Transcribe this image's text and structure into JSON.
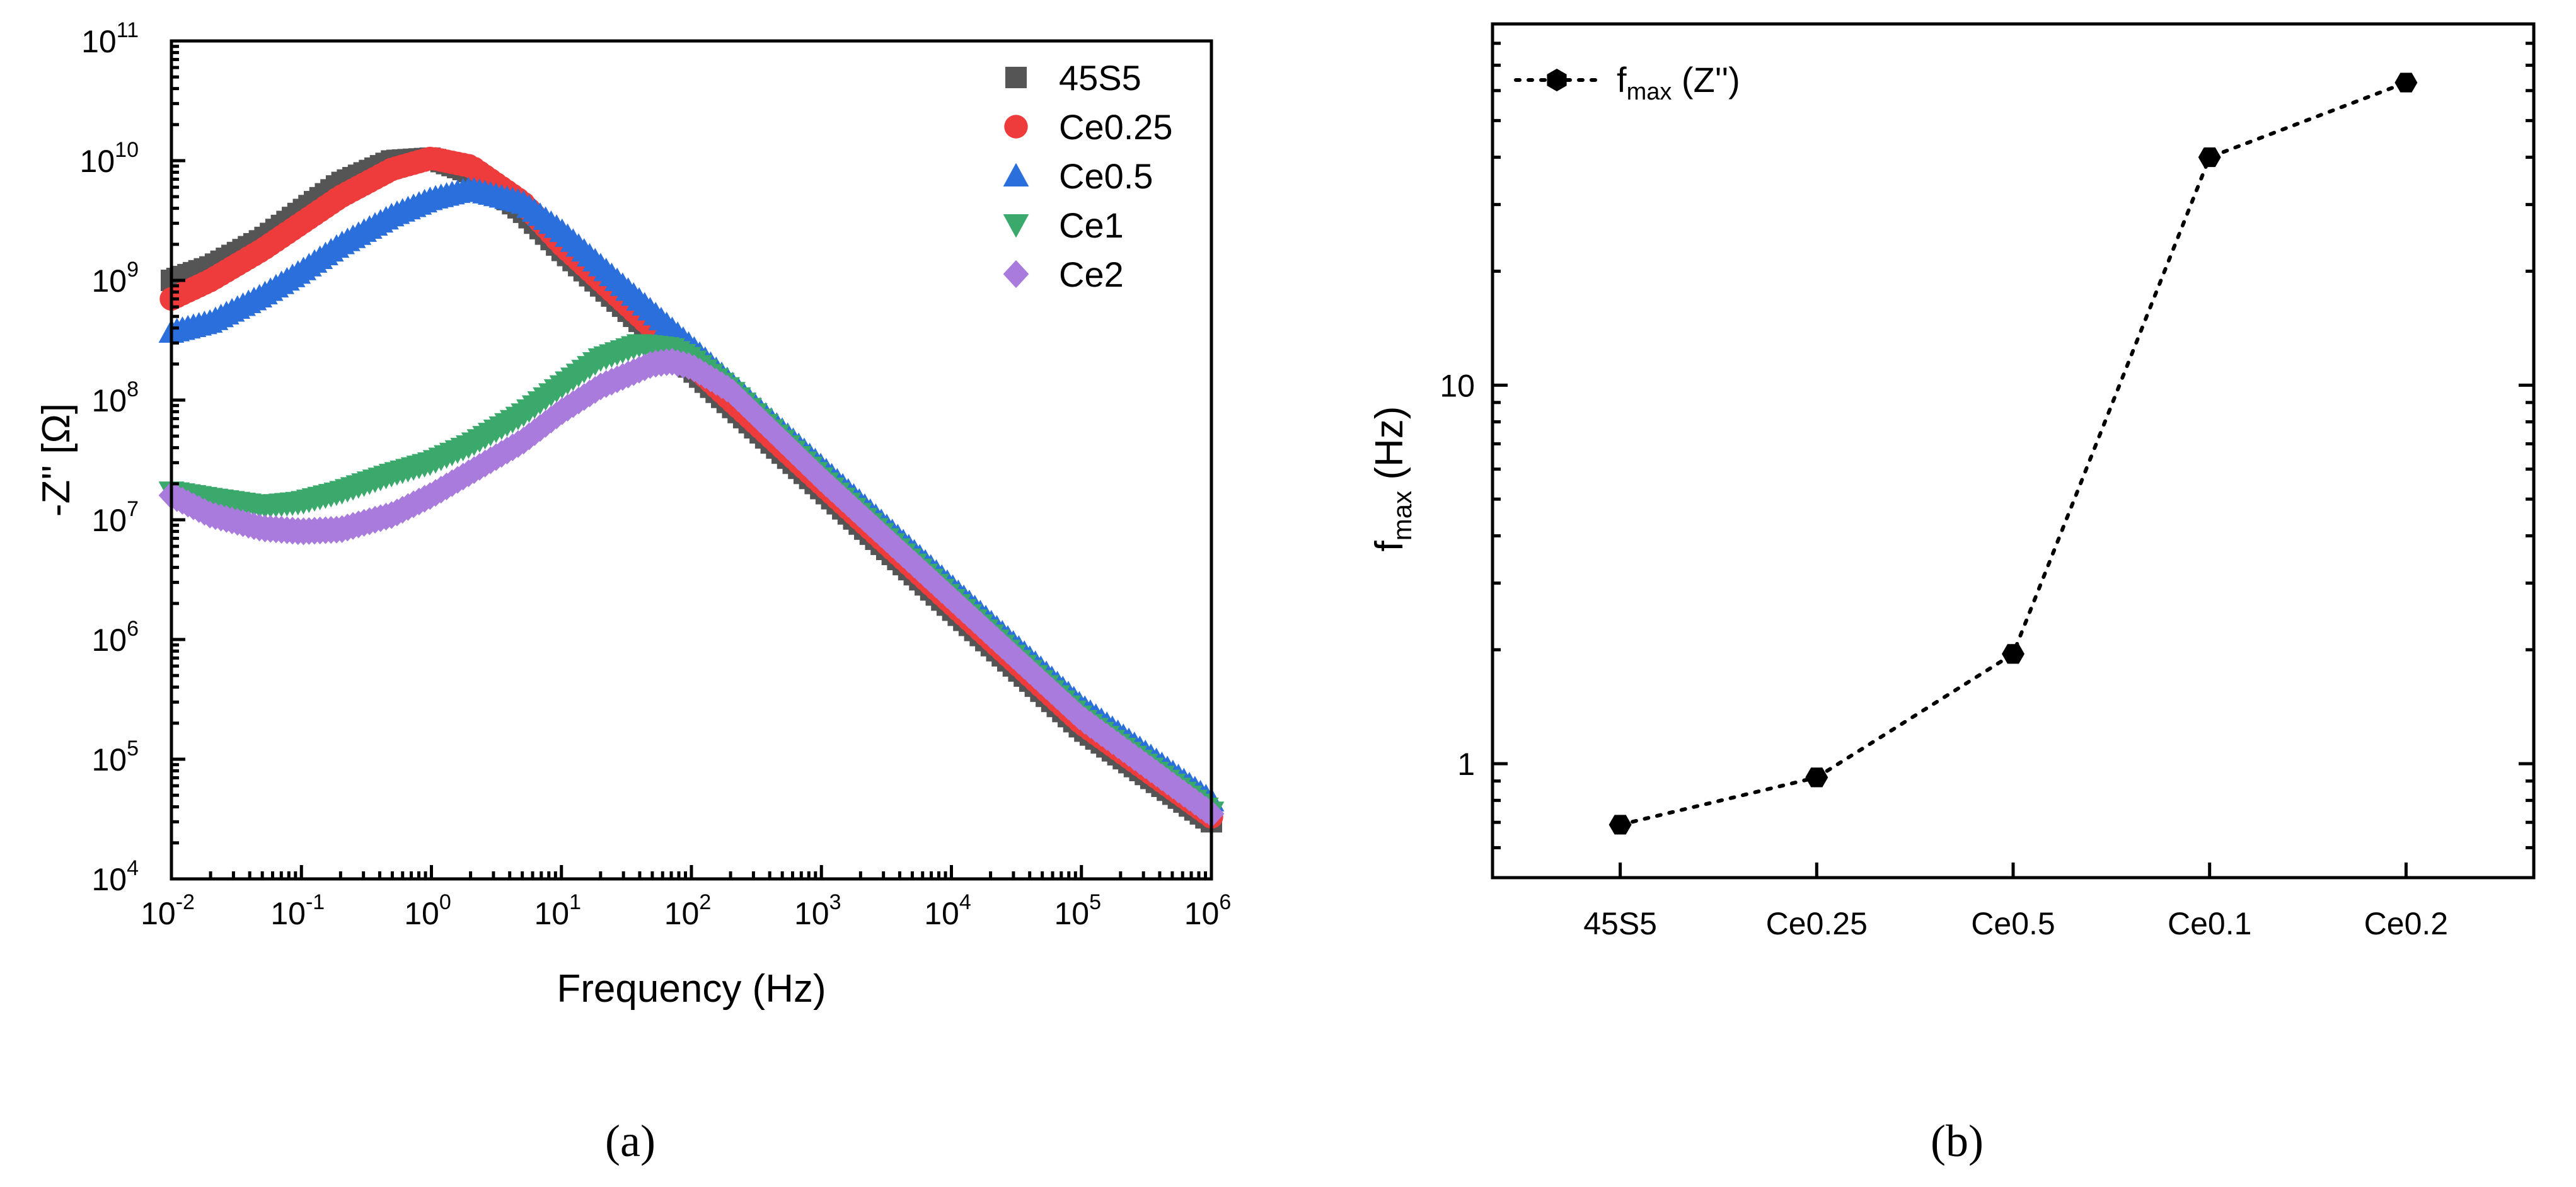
{
  "chart_data": [
    {
      "panel_label": "(a)",
      "type": "scatter",
      "xlabel": "Frequency (Hz)",
      "ylabel": "-Z'' [Ω]",
      "xscale": "log",
      "yscale": "log",
      "xlim": [
        0.01,
        1000000
      ],
      "ylim": [
        10000,
        100000000000
      ],
      "x_tick_exponents": [
        -2,
        -1,
        0,
        1,
        2,
        3,
        4,
        5,
        6
      ],
      "y_tick_exponents": [
        4,
        5,
        6,
        7,
        8,
        9,
        10,
        11
      ],
      "tick_base": "10",
      "legend_position": "top-right",
      "series": [
        {
          "name": "45S5",
          "marker": "square",
          "color": "#555555",
          "points": [
            [
              0.01,
              1000000000.0
            ],
            [
              0.02,
              1300000000.0
            ],
            [
              0.05,
              2200000000.0
            ],
            [
              0.1,
              3800000000.0
            ],
            [
              0.2,
              6500000000.0
            ],
            [
              0.5,
              10000000000.0
            ],
            [
              1,
              10500000000.0
            ],
            [
              2,
              8000000000.0
            ],
            [
              5,
              3800000000.0
            ],
            [
              10,
              1800000000.0
            ],
            [
              100,
              180000000.0
            ],
            [
              1000,
              18000000.0
            ],
            [
              10000.0,
              1800000.0
            ],
            [
              100000.0,
              180000.0
            ],
            [
              1000000.0,
              30000.0
            ]
          ]
        },
        {
          "name": "Ce0.25",
          "marker": "circle",
          "color": "#ee3b3b",
          "points": [
            [
              0.01,
              700000000.0
            ],
            [
              0.02,
              1000000000.0
            ],
            [
              0.05,
              1800000000.0
            ],
            [
              0.1,
              3000000000.0
            ],
            [
              0.2,
              5000000000.0
            ],
            [
              0.5,
              8500000000.0
            ],
            [
              1,
              10500000000.0
            ],
            [
              2,
              9000000000.0
            ],
            [
              5,
              4500000000.0
            ],
            [
              10,
              2000000000.0
            ],
            [
              100,
              200000000.0
            ],
            [
              1000,
              20000000.0
            ],
            [
              10000.0,
              2000000.0
            ],
            [
              100000.0,
              200000.0
            ],
            [
              1000000.0,
              33000.0
            ]
          ]
        },
        {
          "name": "Ce0.5",
          "marker": "triangle-up",
          "color": "#2a6fdb",
          "points": [
            [
              0.01,
              370000000.0
            ],
            [
              0.02,
              450000000.0
            ],
            [
              0.05,
              750000000.0
            ],
            [
              0.1,
              1200000000.0
            ],
            [
              0.2,
              2000000000.0
            ],
            [
              0.5,
              3500000000.0
            ],
            [
              1,
              4800000000.0
            ],
            [
              2,
              5800000000.0
            ],
            [
              5,
              4500000000.0
            ],
            [
              10,
              2600000000.0
            ],
            [
              100,
              280000000.0
            ],
            [
              1000,
              28000000.0
            ],
            [
              10000.0,
              2800000.0
            ],
            [
              100000.0,
              280000.0
            ],
            [
              1000000.0,
              45000.0
            ]
          ]
        },
        {
          "name": "Ce1",
          "marker": "triangle-down",
          "color": "#3aa96b",
          "points": [
            [
              0.01,
              17000000.0
            ],
            [
              0.02,
              15000000.0
            ],
            [
              0.05,
              13000000.0
            ],
            [
              0.1,
              14000000.0
            ],
            [
              0.2,
              17000000.0
            ],
            [
              0.5,
              24000000.0
            ],
            [
              1,
              30000000.0
            ],
            [
              2,
              42000000.0
            ],
            [
              5,
              75000000.0
            ],
            [
              10,
              130000000.0
            ],
            [
              20,
              220000000.0
            ],
            [
              40,
              290000000.0
            ],
            [
              70,
              270000000.0
            ],
            [
              100,
              220000000.0
            ],
            [
              200,
              120000000.0
            ],
            [
              1000,
              22000000.0
            ],
            [
              10000.0,
              2200000.0
            ],
            [
              100000.0,
              220000.0
            ],
            [
              1000000.0,
              36000.0
            ]
          ]
        },
        {
          "name": "Ce2",
          "marker": "diamond",
          "color": "#a87bdc",
          "points": [
            [
              0.01,
              16000000.0
            ],
            [
              0.02,
              11000000.0
            ],
            [
              0.05,
              8500000.0
            ],
            [
              0.1,
              8000000.0
            ],
            [
              0.2,
              8300000.0
            ],
            [
              0.5,
              11000000.0
            ],
            [
              1,
              16000000.0
            ],
            [
              2,
              25000000.0
            ],
            [
              5,
              45000000.0
            ],
            [
              10,
              80000000.0
            ],
            [
              20,
              130000000.0
            ],
            [
              50,
              200000000.0
            ],
            [
              70,
              210000000.0
            ],
            [
              100,
              190000000.0
            ],
            [
              200,
              120000000.0
            ],
            [
              1000,
              22000000.0
            ],
            [
              10000.0,
              2200000.0
            ],
            [
              100000.0,
              220000.0
            ],
            [
              1000000.0,
              35000.0
            ]
          ]
        }
      ]
    },
    {
      "panel_label": "(b)",
      "type": "line",
      "line_style": "dotted",
      "marker": "hexagon",
      "xlabel": "",
      "ylabel_main": "f",
      "ylabel_sub": "max",
      "ylabel_tail": " (Hz)",
      "yscale": "log",
      "ylim": [
        0.5,
        90
      ],
      "y_ticks": [
        "1",
        "10"
      ],
      "categories": [
        "45S5",
        "Ce0.25",
        "Ce0.5",
        "Ce0.1",
        "Ce0.2"
      ],
      "values": [
        0.69,
        0.92,
        1.95,
        40,
        63
      ],
      "legend_position": "top-left",
      "legend": {
        "main": "f",
        "sub": "max",
        "tail": " (Z'')"
      }
    }
  ]
}
